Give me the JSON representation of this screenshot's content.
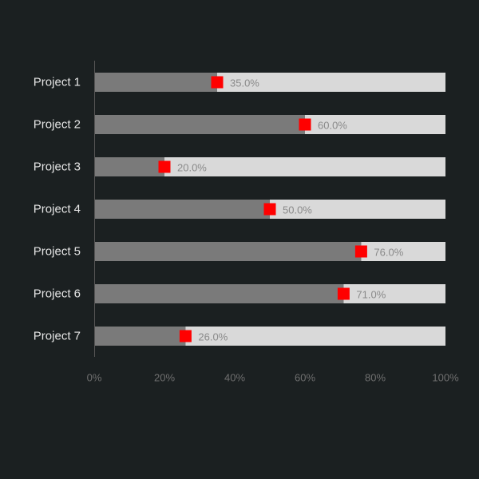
{
  "chart_data": {
    "type": "bar",
    "orientation": "horizontal",
    "stacked": true,
    "categories": [
      "Project 1",
      "Project 2",
      "Project 3",
      "Project 4",
      "Project 5",
      "Project 6",
      "Project 7"
    ],
    "series": [
      {
        "values": [
          35,
          60,
          20,
          50,
          76,
          71,
          26
        ],
        "color": "#7a7a7a"
      },
      {
        "values": [
          65,
          40,
          80,
          50,
          24,
          29,
          74
        ],
        "color": "#d9d9d9"
      }
    ],
    "markers": {
      "values": [
        35,
        60,
        20,
        50,
        76,
        71,
        26
      ],
      "color": "#ff0000",
      "shape": "square"
    },
    "data_labels": [
      "35.0%",
      "60.0%",
      "20.0%",
      "50.0%",
      "76.0%",
      "71.0%",
      "26.0%"
    ],
    "xlim": [
      0,
      100
    ],
    "x_ticks": [
      0,
      20,
      40,
      60,
      80,
      100
    ],
    "x_tick_labels": [
      "0%",
      "20%",
      "40%",
      "60%",
      "80%",
      "100%"
    ],
    "grid": false,
    "legend": "none",
    "axis_color": "#555555",
    "background": "#1b2021"
  }
}
